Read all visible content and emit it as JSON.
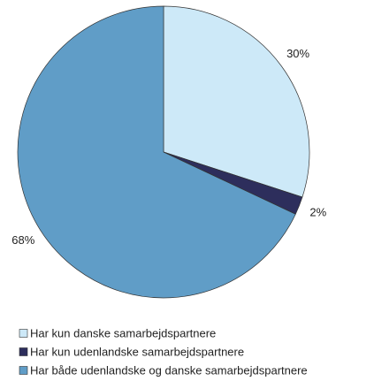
{
  "chart_data": {
    "type": "pie",
    "categories": [
      "Har kun danske samarbejdspartnere",
      "Har kun udenlandske samarbejdspartnere",
      "Har både udenlandske og danske samarbejdspartnere"
    ],
    "values": [
      30,
      2,
      68
    ],
    "value_labels": [
      "30%",
      "2%",
      "68%"
    ],
    "colors": [
      "#cde9f8",
      "#2d2e5c",
      "#609dc7"
    ],
    "legend": "bottom"
  }
}
